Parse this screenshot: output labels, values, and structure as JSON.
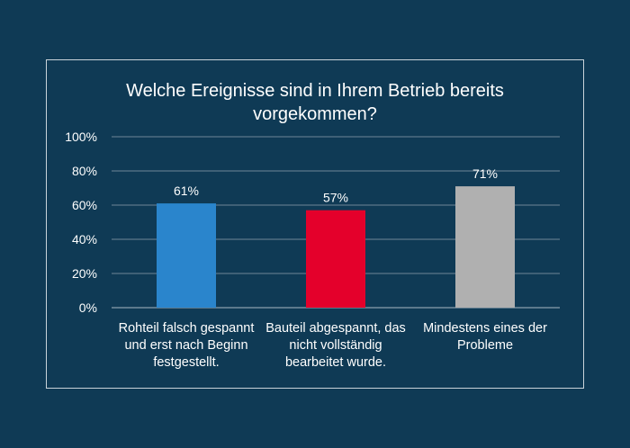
{
  "chart_data": {
    "type": "bar",
    "title": "Welche Ereignisse sind in Ihrem Betrieb bereits\nvorgekommen?",
    "xlabel": "",
    "ylabel": "",
    "categories": [
      "Rohteil falsch gespannt und erst nach Beginn festgestellt.",
      "Bauteil abgespannt, das nicht vollständig bearbeitet wurde.",
      "Mindestens eines der Probleme"
    ],
    "values": [
      61,
      57,
      71
    ],
    "value_labels": [
      "61%",
      "57%",
      "71%"
    ],
    "bar_colors": [
      "#2a85cc",
      "#e4002b",
      "#b0b0b0"
    ],
    "ylim": [
      0,
      100
    ],
    "yticks": [
      0,
      20,
      40,
      60,
      80,
      100
    ],
    "ytick_labels": [
      "0%",
      "20%",
      "40%",
      "60%",
      "80%",
      "100%"
    ],
    "grid": true,
    "legend": "none"
  },
  "colors": {
    "background": "#0f3a55",
    "gridline": "#6f8796",
    "text": "#ffffff"
  }
}
